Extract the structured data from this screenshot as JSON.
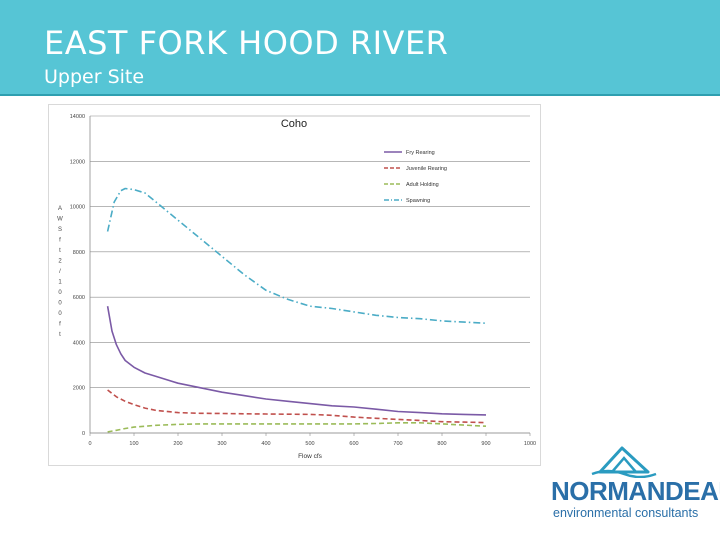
{
  "slide": {
    "title": "EAST FORK HOOD RIVER",
    "subtitle": "Upper Site"
  },
  "logo": {
    "name": "NORMANDEAU",
    "tagline": "environmental consultants",
    "color": "#2a6fa8"
  },
  "chart_data": {
    "type": "line",
    "title": "Coho",
    "xlabel": "Flow cfs",
    "ylabel": "AWS ft2/1000ft",
    "xlim": [
      0,
      1000
    ],
    "ylim": [
      0,
      14000
    ],
    "x_ticks": [
      "0",
      "100",
      "200",
      "300",
      "400",
      "500",
      "600",
      "700",
      "800",
      "900",
      "1000"
    ],
    "y_ticks": [
      "0",
      "2000",
      "4000",
      "6000",
      "8000",
      "10000",
      "12000",
      "14000"
    ],
    "grid": "horizontal",
    "legend_position": "top-right",
    "series": [
      {
        "name": "Fry Rearing",
        "color": "#7b5aa6",
        "dash": "solid",
        "x": [
          40,
          50,
          60,
          70,
          80,
          100,
          125,
          150,
          200,
          250,
          300,
          350,
          400,
          450,
          500,
          550,
          600,
          650,
          700,
          750,
          800,
          850,
          900
        ],
        "y": [
          5600,
          4500,
          3900,
          3500,
          3200,
          2900,
          2650,
          2500,
          2200,
          2000,
          1800,
          1650,
          1500,
          1400,
          1300,
          1200,
          1150,
          1050,
          950,
          900,
          850,
          820,
          800
        ]
      },
      {
        "name": "Juvenile Rearing",
        "color": "#c0504d",
        "dash": "dash",
        "x": [
          40,
          60,
          80,
          100,
          125,
          150,
          200,
          250,
          300,
          350,
          400,
          450,
          500,
          550,
          600,
          650,
          700,
          750,
          800,
          850,
          900
        ],
        "y": [
          1900,
          1600,
          1400,
          1250,
          1100,
          1000,
          900,
          870,
          860,
          850,
          840,
          830,
          820,
          780,
          700,
          650,
          600,
          550,
          500,
          480,
          460
        ]
      },
      {
        "name": "Adult Holding",
        "color": "#9bbb59",
        "dash": "dash",
        "x": [
          40,
          60,
          80,
          100,
          125,
          150,
          200,
          250,
          300,
          350,
          400,
          450,
          500,
          550,
          600,
          650,
          700,
          750,
          800,
          850,
          900
        ],
        "y": [
          50,
          120,
          200,
          260,
          300,
          340,
          380,
          400,
          400,
          400,
          400,
          400,
          400,
          400,
          400,
          420,
          450,
          450,
          400,
          350,
          300
        ]
      },
      {
        "name": "Spawning",
        "color": "#4bacc6",
        "dash": "dashdot",
        "x": [
          40,
          55,
          70,
          80,
          100,
          125,
          150,
          175,
          200,
          225,
          250,
          275,
          300,
          350,
          400,
          450,
          500,
          550,
          600,
          650,
          700,
          750,
          800,
          850,
          900
        ],
        "y": [
          8900,
          10200,
          10700,
          10800,
          10750,
          10600,
          10200,
          9800,
          9400,
          9000,
          8600,
          8200,
          7800,
          7000,
          6300,
          5900,
          5600,
          5500,
          5350,
          5200,
          5100,
          5050,
          4950,
          4900,
          4850
        ]
      }
    ]
  }
}
